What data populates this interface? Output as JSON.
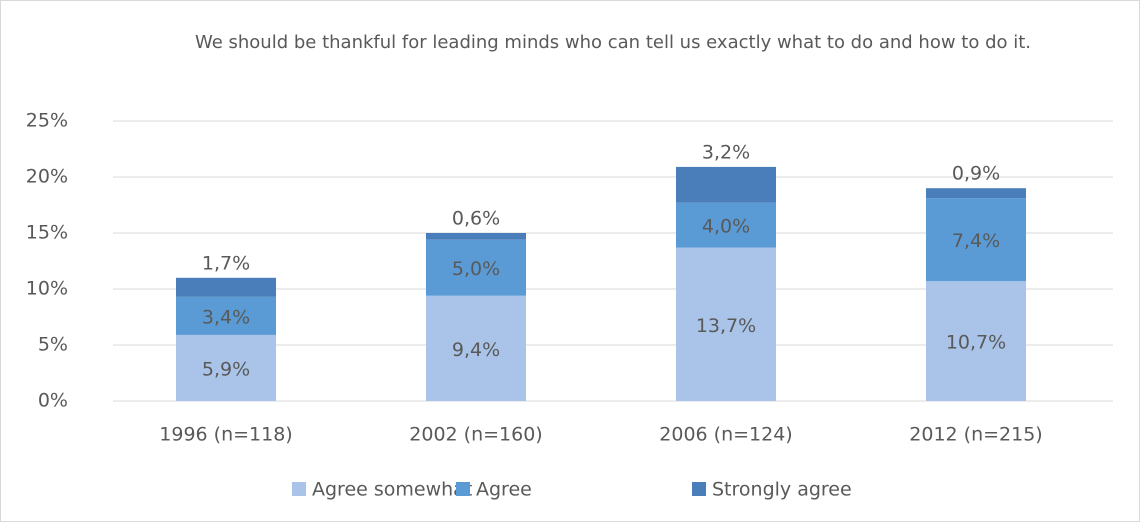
{
  "chart_data": {
    "type": "stacked_bar",
    "title": "We should be thankful for leading minds who can tell us exactly what to do and how to do it.",
    "categories": [
      "1996 (n=118)",
      "2002 (n=160)",
      "2006 (n=124)",
      "2012 (n=215)"
    ],
    "series": [
      {
        "name": "Agree somewhat",
        "color": "#a9c4e8",
        "values": [
          5.9,
          9.4,
          13.7,
          10.7
        ],
        "value_labels": [
          "5,9%",
          "9,4%",
          "13,7%",
          "10,7%"
        ]
      },
      {
        "name": "Agree",
        "color": "#5b9bd5",
        "values": [
          3.4,
          5.0,
          4.0,
          7.4
        ],
        "value_labels": [
          "3,4%",
          "5,0%",
          "4,0%",
          "7,4%"
        ]
      },
      {
        "name": "Strongly agree",
        "color": "#4a7ebb",
        "values": [
          1.7,
          0.6,
          3.2,
          0.9
        ],
        "value_labels": [
          "1,7%",
          "0,6%",
          "3,2%",
          "0,9%"
        ]
      }
    ],
    "ylim": [
      0,
      25
    ],
    "yticks": [
      {
        "value": 0,
        "label": "0%"
      },
      {
        "value": 5,
        "label": "5%"
      },
      {
        "value": 10,
        "label": "10%"
      },
      {
        "value": 15,
        "label": "15%"
      },
      {
        "value": 20,
        "label": "20%"
      },
      {
        "value": 25,
        "label": "25%"
      }
    ],
    "grid": true,
    "legend": "bottom"
  }
}
